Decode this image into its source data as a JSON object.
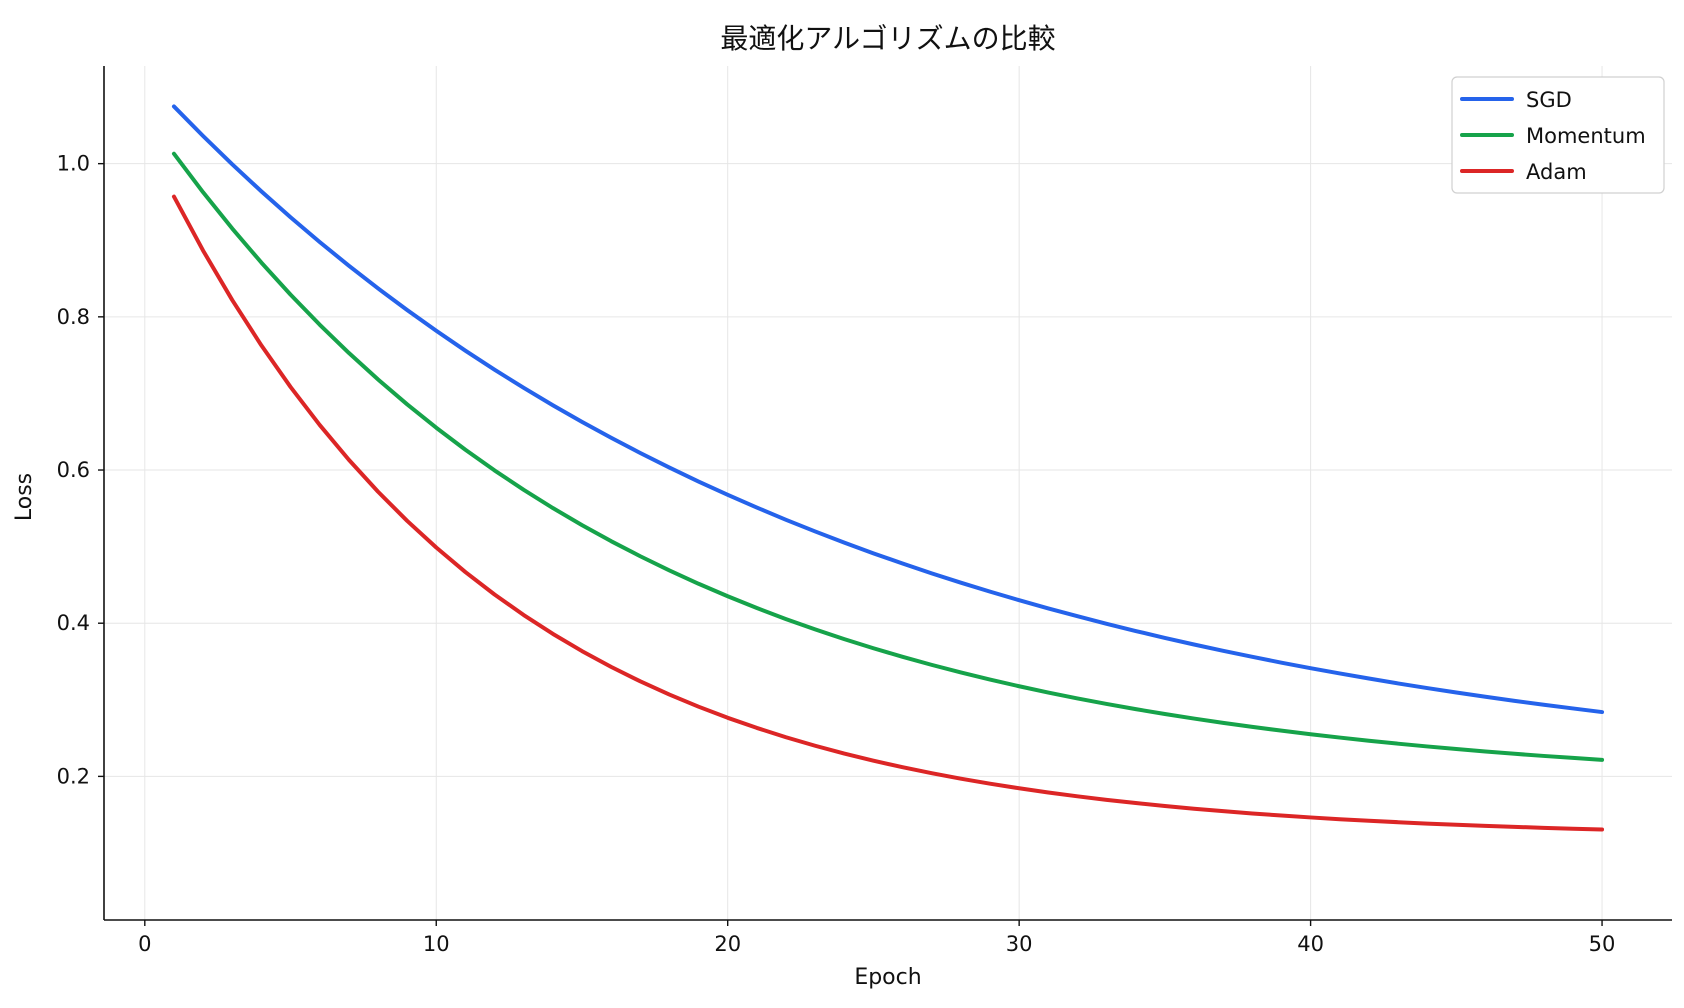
{
  "chart_data": {
    "type": "line",
    "title": "最適化アルゴリズムの比較",
    "xlabel": "Epoch",
    "ylabel": "Loss",
    "xlim": [
      -1.4,
      52.4
    ],
    "ylim": [
      0.0125,
      1.1275
    ],
    "x_ticks": [
      0,
      10,
      20,
      30,
      40,
      50
    ],
    "y_ticks": [
      0.2,
      0.4,
      0.6,
      0.8,
      1.0
    ],
    "x_tick_labels": [
      "0",
      "10",
      "20",
      "30",
      "40",
      "50"
    ],
    "y_tick_labels": [
      "0.2",
      "0.4",
      "0.6",
      "0.8",
      "1.0"
    ],
    "grid": true,
    "legend_position": "top-right",
    "x": [
      1,
      2,
      3,
      4,
      5,
      6,
      7,
      8,
      9,
      10,
      11,
      12,
      13,
      14,
      15,
      16,
      17,
      18,
      19,
      20,
      21,
      22,
      23,
      24,
      25,
      26,
      27,
      28,
      29,
      30,
      31,
      32,
      33,
      34,
      35,
      36,
      37,
      38,
      39,
      40,
      41,
      42,
      43,
      44,
      45,
      46,
      47,
      48,
      49,
      50
    ],
    "series": [
      {
        "name": "SGD",
        "color": "#2563eb",
        "values": [
          1.0747,
          1.0361,
          0.9991,
          0.9638,
          0.93,
          0.8977,
          0.8668,
          0.8372,
          0.8089,
          0.7818,
          0.7558,
          0.731,
          0.7073,
          0.6846,
          0.6629,
          0.6421,
          0.6222,
          0.6032,
          0.585,
          0.5676,
          0.551,
          0.535,
          0.5198,
          0.5052,
          0.4912,
          0.4779,
          0.4651,
          0.4529,
          0.4412,
          0.43,
          0.4193,
          0.4091,
          0.3992,
          0.3898,
          0.3808,
          0.3722,
          0.364,
          0.3561,
          0.3485,
          0.3413,
          0.3344,
          0.3278,
          0.3214,
          0.3153,
          0.3095,
          0.304,
          0.2986,
          0.2935,
          0.2887,
          0.284
        ]
      },
      {
        "name": "Momentum",
        "color": "#16a34a",
        "values": [
          1.013,
          0.9626,
          0.9153,
          0.8708,
          0.829,
          0.7898,
          0.7529,
          0.7183,
          0.6858,
          0.6552,
          0.6265,
          0.5995,
          0.5742,
          0.5504,
          0.5281,
          0.5071,
          0.4874,
          0.4689,
          0.4515,
          0.4352,
          0.4198,
          0.4054,
          0.3919,
          0.3792,
          0.3673,
          0.3561,
          0.3456,
          0.3357,
          0.3264,
          0.3177,
          0.3095,
          0.3018,
          0.2946,
          0.2878,
          0.2815,
          0.2755,
          0.2699,
          0.2646,
          0.2597,
          0.255,
          0.2507,
          0.2466,
          0.2427,
          0.2391,
          0.2357,
          0.2325,
          0.2295,
          0.2267,
          0.2241,
          0.2216
        ]
      },
      {
        "name": "Adam",
        "color": "#dc2626",
        "values": [
          0.957,
          0.8865,
          0.8219,
          0.7627,
          0.7085,
          0.6589,
          0.6134,
          0.5718,
          0.5337,
          0.4988,
          0.4668,
          0.4375,
          0.4107,
          0.3861,
          0.3636,
          0.343,
          0.3241,
          0.3068,
          0.291,
          0.2765,
          0.2633,
          0.2511,
          0.24,
          0.2298,
          0.2205,
          0.212,
          0.2042,
          0.197,
          0.1905,
          0.1845,
          0.179,
          0.174,
          0.1694,
          0.1652,
          0.1613,
          0.1578,
          0.1546,
          0.1516,
          0.1489,
          0.1464,
          0.1441,
          0.1421,
          0.1402,
          0.1384,
          0.1368,
          0.1354,
          0.1341,
          0.1328,
          0.1317,
          0.1307
        ]
      }
    ]
  }
}
